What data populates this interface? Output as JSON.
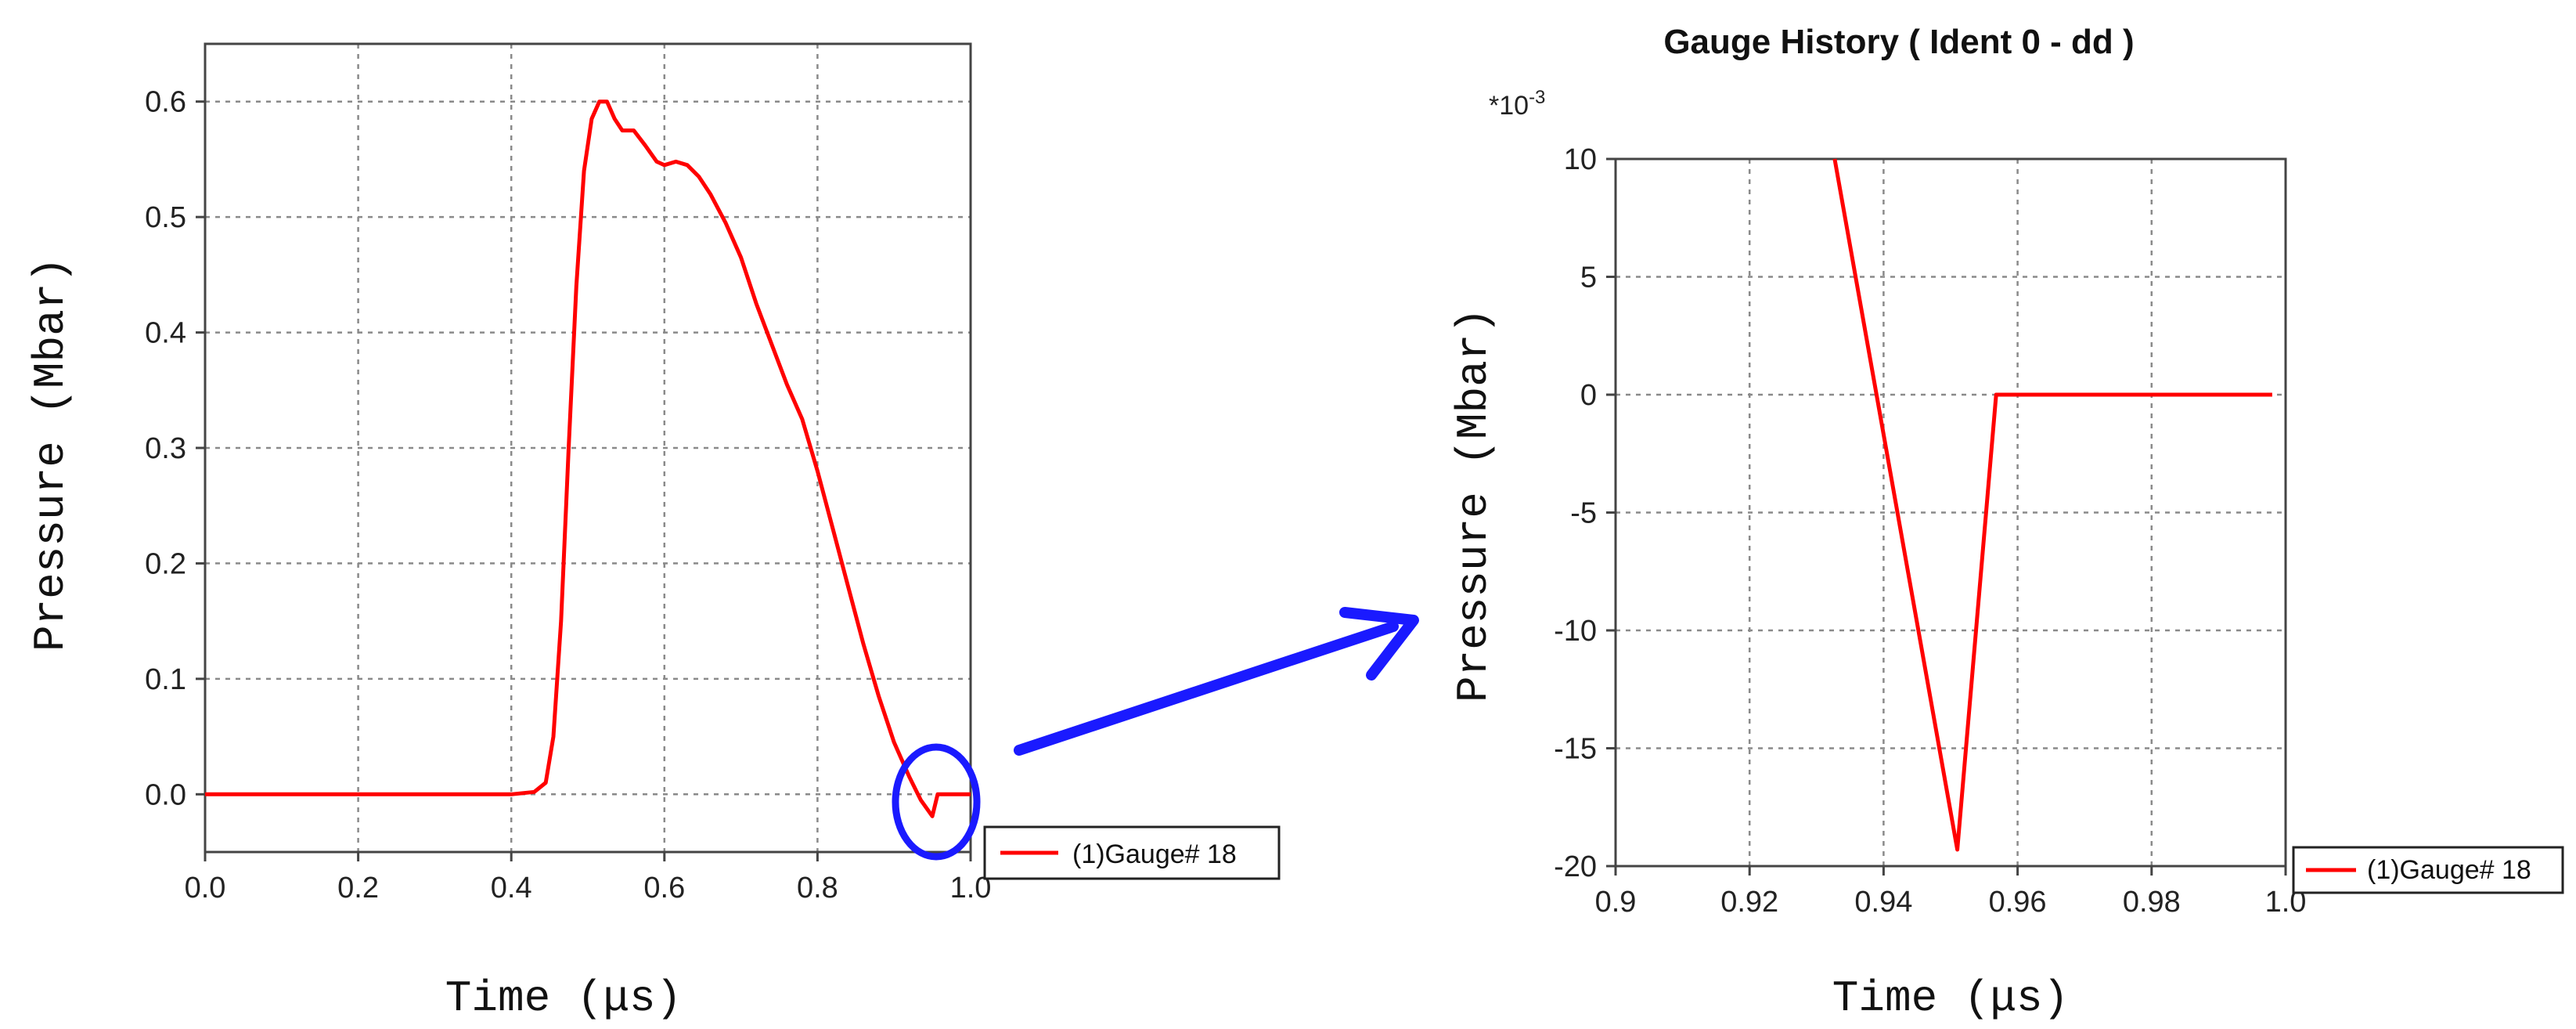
{
  "chart_data": [
    {
      "type": "line",
      "title": "",
      "xlabel": "Time (μs)",
      "ylabel": "Pressure (Mbar)",
      "xlim": [
        0.0,
        1.0
      ],
      "ylim": [
        -0.05,
        0.65
      ],
      "x_ticks": [
        "0.0",
        "0.2",
        "0.4",
        "0.6",
        "0.8",
        "1.0"
      ],
      "y_ticks": [
        "0.0",
        "0.1",
        "0.2",
        "0.3",
        "0.4",
        "0.5",
        "0.6"
      ],
      "grid": true,
      "legend_position": "bottom-right outside",
      "series": [
        {
          "name": "(1)Gauge# 18",
          "color": "#ff0000",
          "x": [
            0.0,
            0.4,
            0.43,
            0.445,
            0.455,
            0.465,
            0.475,
            0.485,
            0.495,
            0.505,
            0.515,
            0.525,
            0.535,
            0.545,
            0.56,
            0.575,
            0.59,
            0.6,
            0.615,
            0.63,
            0.645,
            0.66,
            0.68,
            0.7,
            0.72,
            0.74,
            0.76,
            0.78,
            0.8,
            0.82,
            0.84,
            0.86,
            0.88,
            0.9,
            0.92,
            0.935,
            0.95,
            0.957,
            1.0
          ],
          "y": [
            0.0,
            0.0,
            0.002,
            0.01,
            0.05,
            0.15,
            0.3,
            0.44,
            0.54,
            0.585,
            0.6,
            0.6,
            0.585,
            0.575,
            0.575,
            0.562,
            0.548,
            0.545,
            0.548,
            0.545,
            0.535,
            0.52,
            0.495,
            0.465,
            0.425,
            0.39,
            0.355,
            0.325,
            0.28,
            0.23,
            0.18,
            0.13,
            0.085,
            0.045,
            0.015,
            -0.005,
            -0.019,
            0.0,
            0.0
          ]
        }
      ]
    },
    {
      "type": "line",
      "title": "Gauge History ( Ident 0 - dd )",
      "xlabel": "Time (μs)",
      "ylabel": "Pressure (Mbar)",
      "y_scale_label": "*10",
      "y_scale_exponent": "-3",
      "xlim": [
        0.9,
        1.0
      ],
      "ylim": [
        -20,
        10
      ],
      "x_ticks": [
        "0.9",
        "0.92",
        "0.94",
        "0.96",
        "0.98",
        "1.0"
      ],
      "y_ticks": [
        "-20",
        "-15",
        "-10",
        "-5",
        "0",
        "5",
        "10"
      ],
      "grid": true,
      "legend_position": "bottom-right outside",
      "series": [
        {
          "name": "(1)Gauge# 18",
          "color": "#ff0000",
          "x": [
            0.9327,
            0.951,
            0.9568,
            0.998
          ],
          "y": [
            10.0,
            -19.3,
            0.0,
            0.0
          ]
        }
      ]
    }
  ],
  "annotation": {
    "highlight_color": "#1a1aff"
  }
}
